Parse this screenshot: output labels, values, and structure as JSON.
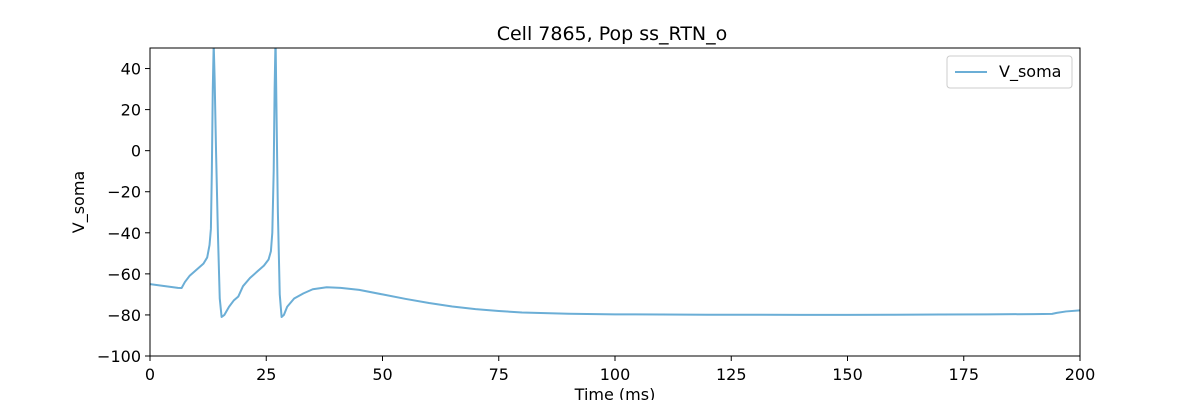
{
  "chart_data": {
    "type": "line",
    "title": "Cell 7865, Pop ss_RTN_o",
    "xlabel": "Time (ms)",
    "ylabel": "V_soma",
    "xlim": [
      0,
      200
    ],
    "ylim": [
      -100,
      50
    ],
    "xticks": [
      0,
      25,
      50,
      75,
      100,
      125,
      150,
      175,
      200
    ],
    "yticks": [
      -100,
      -80,
      -60,
      -40,
      -20,
      0,
      20,
      40
    ],
    "grid": false,
    "legend_position": "top-right",
    "series": [
      {
        "name": "V_soma",
        "color": "#6baed6",
        "x": [
          0,
          2,
          4,
          6,
          6.8,
          7.5,
          8.5,
          10,
          11.5,
          12.3,
          12.8,
          13.1,
          13.3,
          13.5,
          13.7,
          13.9,
          14.2,
          14.6,
          15.0,
          15.4,
          16.0,
          17.0,
          18.0,
          19.0,
          20.0,
          21.5,
          23.0,
          24.5,
          25.5,
          26.0,
          26.3,
          26.6,
          26.8,
          27.0,
          27.2,
          27.5,
          27.9,
          28.3,
          28.8,
          29.5,
          31.0,
          33.0,
          35.0,
          38.0,
          41.0,
          45.0,
          50.0,
          55.0,
          60.0,
          65.0,
          70.0,
          75.0,
          80.0,
          90.0,
          100.0,
          110.0,
          120.0,
          130.0,
          140.0,
          150.0,
          160.0,
          170.0,
          180.0,
          190.0,
          194.0,
          195.0,
          197.0,
          200.0
        ],
        "y": [
          -65,
          -65.6,
          -66.2,
          -66.8,
          -66.9,
          -64,
          -61,
          -58,
          -55,
          -52,
          -46,
          -38,
          -10,
          30,
          52,
          35,
          0,
          -40,
          -72,
          -81,
          -80,
          -76,
          -73,
          -71,
          -66,
          -62,
          -59,
          -56,
          -53,
          -49,
          -40,
          -10,
          30,
          55,
          20,
          -30,
          -70,
          -81,
          -80,
          -76,
          -72,
          -69.5,
          -67.5,
          -66.5,
          -66.8,
          -67.8,
          -70,
          -72.2,
          -74.2,
          -75.9,
          -77.2,
          -78.1,
          -78.8,
          -79.4,
          -79.7,
          -79.8,
          -79.9,
          -79.9,
          -80,
          -80,
          -79.9,
          -79.8,
          -79.7,
          -79.6,
          -79.5,
          -79,
          -78.3,
          -77.8
        ]
      }
    ]
  }
}
